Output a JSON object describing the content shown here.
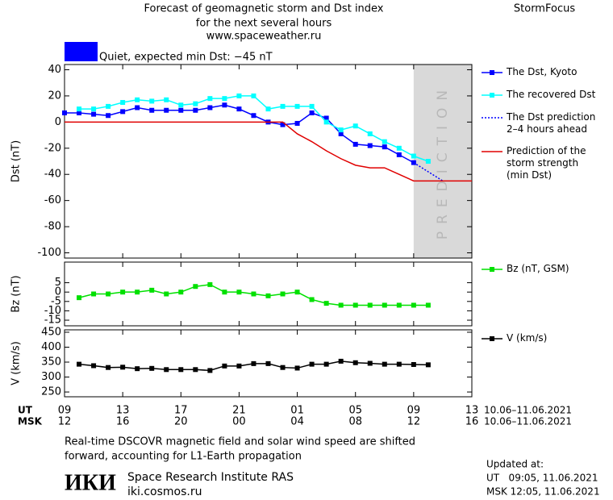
{
  "header": {
    "title_lines": [
      "Forecast of geomagnetic storm and Dst index",
      "for the next several hours",
      "www.spaceweather.ru"
    ],
    "brand": "StormFocus",
    "status": "Quiet, expected min Dst: −45 nT",
    "status_color": "#0000ff"
  },
  "chart_data": [
    {
      "type": "line",
      "ylabel": "Dst (nT)",
      "xlim": [
        0,
        28
      ],
      "ylim": [
        -104,
        44
      ],
      "yticks": [
        -100,
        -80,
        -60,
        -40,
        -20,
        0,
        20,
        40
      ],
      "shade": {
        "xlim": [
          24,
          28
        ],
        "label": "PREDICTION",
        "color": "#d9d9d9"
      },
      "series": [
        {
          "name": "The Dst, Kyoto",
          "color": "#0000ff",
          "marker": "square",
          "dotted": false,
          "x": [
            0,
            1,
            2,
            3,
            4,
            5,
            6,
            7,
            8,
            9,
            10,
            11,
            12,
            13,
            14,
            15,
            16,
            17,
            18,
            19,
            20,
            21,
            22,
            23,
            24
          ],
          "values": [
            7,
            7,
            6,
            5,
            8,
            11,
            9,
            9,
            9,
            9,
            11,
            13,
            10,
            5,
            0,
            -2,
            -1,
            7,
            3,
            -9,
            -17,
            -18,
            -19,
            -25,
            -31
          ]
        },
        {
          "name": "The recovered Dst",
          "color": "#00ffff",
          "marker": "square",
          "dotted": false,
          "x": [
            1,
            2,
            3,
            4,
            5,
            6,
            7,
            8,
            9,
            10,
            11,
            12,
            13,
            14,
            15,
            16,
            17,
            18,
            19,
            20,
            21,
            22,
            23,
            24,
            25
          ],
          "values": [
            10,
            10,
            12,
            15,
            17,
            16,
            17,
            13,
            14,
            18,
            18,
            20,
            20,
            10,
            12,
            12,
            12,
            0,
            -6,
            -3,
            -9,
            -15,
            -20,
            -26,
            -30
          ]
        },
        {
          "name": "The Dst prediction\n2–4 hours ahead",
          "color": "#0000ff",
          "marker": null,
          "dotted": true,
          "x": [
            24,
            26
          ],
          "values": [
            -31,
            -45
          ]
        },
        {
          "name": "Prediction of the\nstorm strength\n(min Dst)",
          "color": "#e00000",
          "marker": null,
          "dotted": false,
          "x": [
            0,
            15,
            16,
            17,
            18,
            19,
            20,
            21,
            22,
            23,
            24,
            28
          ],
          "values": [
            0,
            0,
            -9,
            -15,
            -22,
            -28,
            -33,
            -35,
            -35,
            -40,
            -45,
            -45
          ]
        }
      ]
    },
    {
      "type": "line",
      "ylabel": "Bz (nT)",
      "xlim": [
        0,
        28
      ],
      "ylim": [
        -18,
        16
      ],
      "yticks": [
        -15,
        -10,
        -5,
        0,
        5
      ],
      "series": [
        {
          "name": "Bz (nT, GSM)",
          "color": "#00e000",
          "marker": "square",
          "dotted": false,
          "x": [
            1,
            2,
            3,
            4,
            5,
            6,
            7,
            8,
            9,
            10,
            11,
            12,
            13,
            14,
            15,
            16,
            17,
            18,
            19,
            20,
            21,
            22,
            23,
            24,
            25
          ],
          "values": [
            -3,
            -1,
            -1,
            0,
            0,
            1,
            -1,
            0,
            3,
            4,
            0,
            0,
            -1,
            -2,
            -1,
            0,
            -4,
            -6,
            -7,
            -7,
            -7,
            -7,
            -7,
            -7,
            -7
          ]
        }
      ]
    },
    {
      "type": "line",
      "ylabel": "V (km/s)",
      "xlim": [
        0,
        28
      ],
      "ylim": [
        234,
        458
      ],
      "yticks": [
        250,
        300,
        350,
        400,
        450
      ],
      "xlabel": "UT",
      "xlabel_msk": "MSK",
      "xrange": "10.06–11.06.2021",
      "xrange_msk": "10.06–11.06.2021",
      "xticks": [
        {
          "value": 0,
          "label": "09"
        },
        {
          "value": 4,
          "label": "13"
        },
        {
          "value": 8,
          "label": "17"
        },
        {
          "value": 12,
          "label": "21"
        },
        {
          "value": 16,
          "label": "01"
        },
        {
          "value": 20,
          "label": "05"
        },
        {
          "value": 24,
          "label": "09"
        },
        {
          "value": 28,
          "label": "13"
        }
      ],
      "xticks_msk": [
        {
          "value": 0,
          "label": "12"
        },
        {
          "value": 4,
          "label": "16"
        },
        {
          "value": 8,
          "label": "20"
        },
        {
          "value": 12,
          "label": "00"
        },
        {
          "value": 16,
          "label": "04"
        },
        {
          "value": 20,
          "label": "08"
        },
        {
          "value": 24,
          "label": "12"
        },
        {
          "value": 28,
          "label": "16"
        }
      ],
      "series": [
        {
          "name": "V (km/s)",
          "color": "#000000",
          "marker": "square",
          "dotted": false,
          "x": [
            1,
            2,
            3,
            4,
            5,
            6,
            7,
            8,
            9,
            10,
            11,
            12,
            13,
            14,
            15,
            16,
            17,
            18,
            19,
            20,
            21,
            22,
            23,
            24,
            25
          ],
          "values": [
            343,
            338,
            332,
            333,
            328,
            329,
            325,
            325,
            325,
            322,
            337,
            337,
            345,
            345,
            332,
            330,
            343,
            343,
            353,
            348,
            346,
            343,
            343,
            342,
            341
          ]
        }
      ]
    }
  ],
  "footer": {
    "note_lines": [
      "Real-time DSCOVR magnetic field and solar wind speed are shifted",
      "forward, accounting for L1-Earth propagation"
    ],
    "logo": "ИКИ",
    "institute": "Space Research Institute RAS",
    "url": "iki.cosmos.ru",
    "updated_title": "Updated at:",
    "updated_ut": "UT   09:05, 11.06.2021",
    "updated_msk": "MSK 12:05, 11.06.2021"
  }
}
